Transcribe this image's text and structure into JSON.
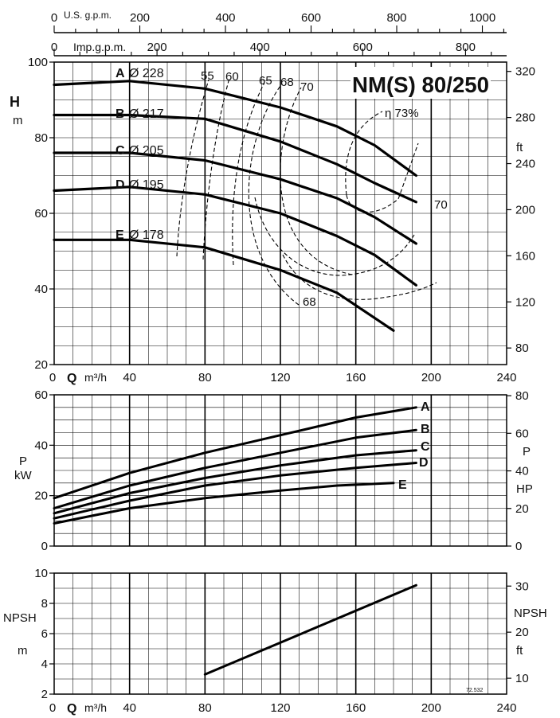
{
  "chart_data": {
    "type": "line",
    "title": "NM(S) 80/250",
    "doc_code": "72.532",
    "flow_axis": {
      "label_q": "Q",
      "unit": "m³/h",
      "range": [
        0,
        240
      ],
      "ticks": [
        "0",
        "40",
        "80",
        "120",
        "160",
        "200",
        "240"
      ]
    },
    "top_axes": {
      "usgpm": {
        "label": "U.S. g.p.m.",
        "ticks": [
          {
            "v": 0,
            "t": "0"
          },
          {
            "v": 200,
            "t": "200"
          },
          {
            "v": 400,
            "t": "400"
          },
          {
            "v": 600,
            "t": "600"
          },
          {
            "v": 800,
            "t": "800"
          },
          {
            "v": 1000,
            "t": "1000"
          }
        ]
      },
      "impgpm": {
        "label": "Imp.g.p.m.",
        "ticks": [
          {
            "v": 0,
            "t": "0"
          },
          {
            "v": 200,
            "t": "200"
          },
          {
            "v": 400,
            "t": "400"
          },
          {
            "v": 600,
            "t": "600"
          },
          {
            "v": 800,
            "t": "800"
          }
        ]
      }
    },
    "head": {
      "ylabel": "H",
      "yunit": "m",
      "ylim": [
        20,
        100
      ],
      "ticks": [
        {
          "v": 20,
          "t": "20"
        },
        {
          "v": 40,
          "t": "40"
        },
        {
          "v": 60,
          "t": "60"
        },
        {
          "v": 80,
          "t": "80"
        },
        {
          "v": 100,
          "t": "100"
        }
      ],
      "right_unit": "ft",
      "right_ticks": [
        {
          "v": 80,
          "t": "80"
        },
        {
          "v": 120,
          "t": "120"
        },
        {
          "v": 160,
          "t": "160"
        },
        {
          "v": 200,
          "t": "200"
        },
        {
          "v": 240,
          "t": "240"
        },
        {
          "v": 280,
          "t": "280"
        },
        {
          "v": 320,
          "t": "320"
        }
      ],
      "series": [
        {
          "name": "A",
          "diameter": "Ø 228",
          "x": [
            0,
            40,
            80,
            120,
            150,
            170,
            192
          ],
          "y": [
            94,
            95,
            93,
            88,
            83,
            78,
            70
          ]
        },
        {
          "name": "B",
          "diameter": "Ø 217",
          "x": [
            0,
            40,
            80,
            120,
            150,
            170,
            192
          ],
          "y": [
            86,
            86,
            85,
            79,
            73,
            68,
            63
          ]
        },
        {
          "name": "C",
          "diameter": "Ø 205",
          "x": [
            0,
            40,
            80,
            120,
            150,
            170,
            192
          ],
          "y": [
            76,
            76,
            74,
            69,
            64,
            59,
            52
          ]
        },
        {
          "name": "D",
          "diameter": "Ø 195",
          "x": [
            0,
            40,
            80,
            120,
            150,
            170,
            192
          ],
          "y": [
            66,
            67,
            65,
            60,
            54,
            49,
            41
          ]
        },
        {
          "name": "E",
          "diameter": "Ø 178",
          "x": [
            0,
            40,
            80,
            120,
            150,
            180
          ],
          "y": [
            53,
            53,
            51,
            45,
            39,
            29
          ]
        }
      ],
      "efficiency_labels": [
        "55",
        "60",
        "65",
        "68",
        "70",
        "η 73%",
        "70",
        "68"
      ]
    },
    "power": {
      "ylabel": "P",
      "yunit": "kW",
      "ylim": [
        0,
        60
      ],
      "ticks": [
        {
          "v": 0,
          "t": "0"
        },
        {
          "v": 20,
          "t": "20"
        },
        {
          "v": 40,
          "t": "40"
        },
        {
          "v": 60,
          "t": "60"
        }
      ],
      "right_label": "P",
      "right_unit": "HP",
      "right_ticks": [
        {
          "v": 0,
          "t": "0"
        },
        {
          "v": 20,
          "t": "20"
        },
        {
          "v": 40,
          "t": "40"
        },
        {
          "v": 60,
          "t": "60"
        },
        {
          "v": 80,
          "t": "80"
        }
      ],
      "series": [
        {
          "name": "A",
          "x": [
            0,
            40,
            80,
            120,
            160,
            192
          ],
          "y": [
            19,
            29,
            37,
            44,
            51,
            55
          ]
        },
        {
          "name": "B",
          "x": [
            0,
            40,
            80,
            120,
            160,
            192
          ],
          "y": [
            15,
            24,
            31,
            37,
            43,
            46
          ]
        },
        {
          "name": "C",
          "x": [
            0,
            40,
            80,
            120,
            160,
            192
          ],
          "y": [
            13,
            21,
            27,
            32,
            36,
            38
          ]
        },
        {
          "name": "D",
          "x": [
            0,
            40,
            80,
            120,
            160,
            192
          ],
          "y": [
            11,
            18,
            24,
            28,
            31,
            33
          ]
        },
        {
          "name": "E",
          "x": [
            0,
            40,
            80,
            120,
            150,
            180
          ],
          "y": [
            9,
            15,
            19,
            22,
            24,
            25
          ]
        }
      ]
    },
    "npsh": {
      "ylabel": "NPSH",
      "yunit": "m",
      "ylim": [
        2,
        10
      ],
      "ticks": [
        {
          "v": 2,
          "t": "2"
        },
        {
          "v": 4,
          "t": "4"
        },
        {
          "v": 6,
          "t": "6"
        },
        {
          "v": 8,
          "t": "8"
        },
        {
          "v": 10,
          "t": "10"
        }
      ],
      "right_label": "NPSH",
      "right_unit": "ft",
      "right_ticks": [
        {
          "v": 10,
          "t": "10"
        },
        {
          "v": 20,
          "t": "20"
        },
        {
          "v": 30,
          "t": "30"
        }
      ],
      "series": [
        {
          "x": [
            80,
            192
          ],
          "y": [
            3.3,
            9.2
          ]
        }
      ]
    }
  }
}
